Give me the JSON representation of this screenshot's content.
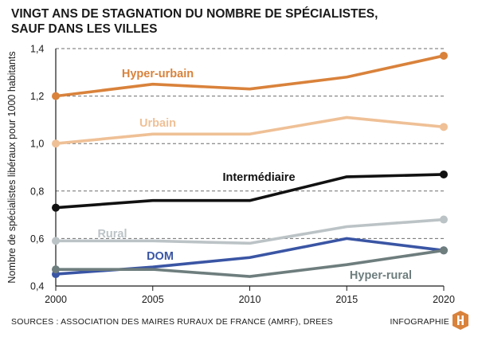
{
  "title_lines": [
    "VINGT ANS DE STAGNATION DU NOMBRE DE SPÉCIALISTES,",
    "SAUF DANS LES VILLES"
  ],
  "source": "SOURCES : ASSOCIATION DES MAIRES RURAUX DE FRANCE (AMRF), DREES",
  "brand": "INFOGRAPHIE",
  "logo_icon": "h-logo-icon",
  "chart_data": {
    "type": "line",
    "ylabel": "Nombre de spécialistes libéraux pour 1000 habitants",
    "xlabel": "",
    "x": [
      2000,
      2005,
      2010,
      2015,
      2020
    ],
    "x_ticks": [
      "2000",
      "2005",
      "2010",
      "2015",
      "2020"
    ],
    "ylim": [
      0.4,
      1.4
    ],
    "y_ticks": [
      "0,4",
      "0,6",
      "0,8",
      "1,0",
      "1,2",
      "1,4"
    ],
    "y_tick_values": [
      0.4,
      0.6,
      0.8,
      1.0,
      1.2,
      1.4
    ],
    "grid": "horizontal dashed",
    "series": [
      {
        "name": "Hyper-urbain",
        "color": "#d9823b",
        "values": [
          1.2,
          1.25,
          1.23,
          1.28,
          1.37
        ]
      },
      {
        "name": "Urbain",
        "color": "#efc096",
        "values": [
          1.0,
          1.04,
          1.04,
          1.11,
          1.07
        ]
      },
      {
        "name": "Intermédiaire",
        "color": "#111111",
        "values": [
          0.73,
          0.76,
          0.76,
          0.86,
          0.87
        ]
      },
      {
        "name": "Rural",
        "color": "#bcc3c6",
        "values": [
          0.59,
          0.59,
          0.58,
          0.65,
          0.68
        ]
      },
      {
        "name": "DOM",
        "color": "#3a55a4",
        "values": [
          0.45,
          0.48,
          0.52,
          0.6,
          0.55
        ]
      },
      {
        "name": "Hyper-rural",
        "color": "#6e7d7d",
        "values": [
          0.47,
          0.47,
          0.44,
          0.49,
          0.55
        ]
      }
    ]
  }
}
